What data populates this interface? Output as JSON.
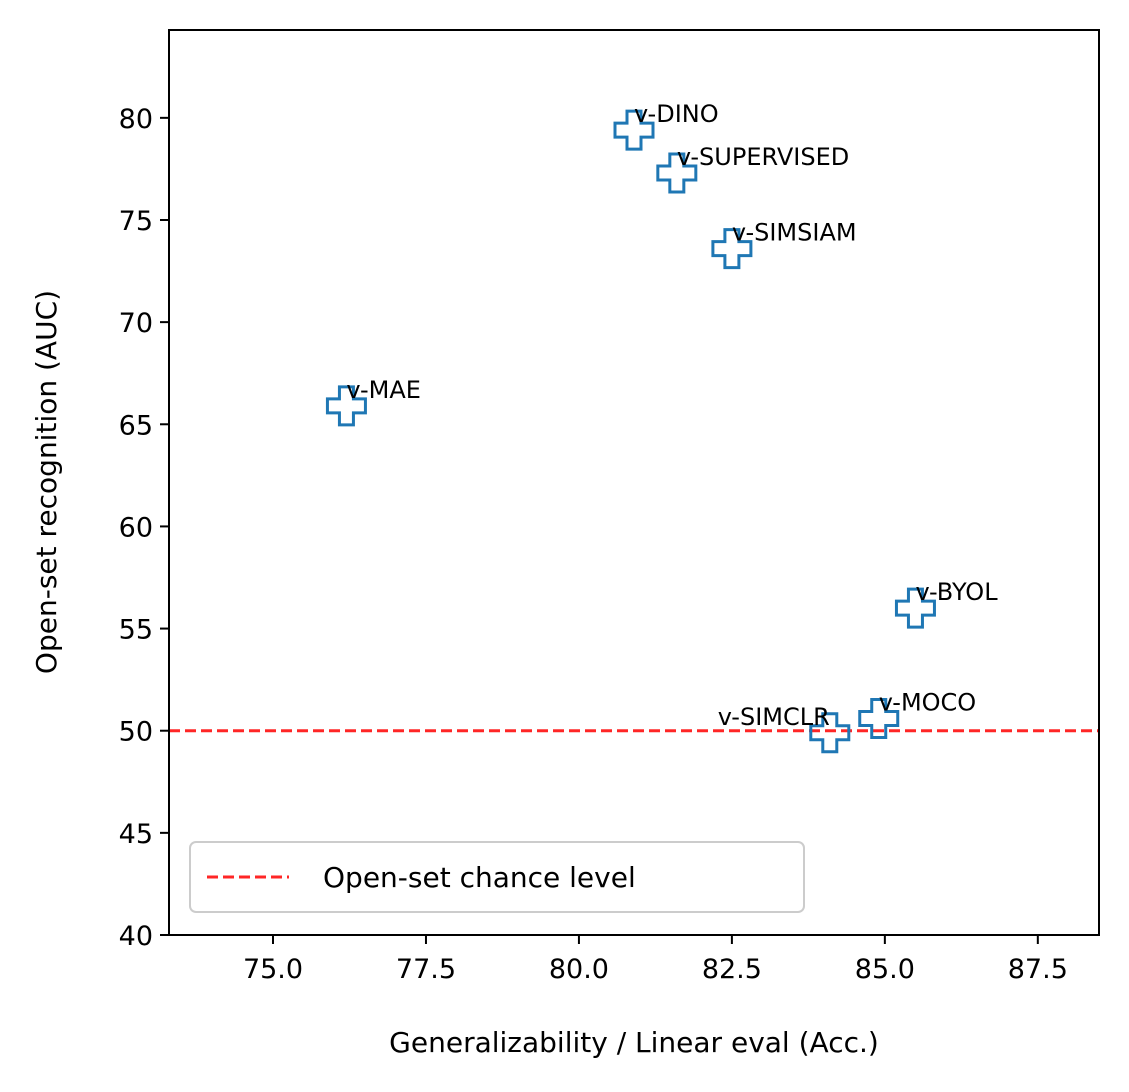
{
  "chart_data": {
    "type": "scatter",
    "xlabel": "Generalizability / Linear eval (Acc.)",
    "ylabel": "Open-set recognition (AUC)",
    "xlim": [
      73.3,
      88.5
    ],
    "ylim": [
      40,
      84.3
    ],
    "x_ticks": [
      "75.0",
      "77.5",
      "80.0",
      "82.5",
      "85.0",
      "87.5"
    ],
    "y_ticks": [
      "40",
      "45",
      "50",
      "55",
      "60",
      "65",
      "70",
      "75",
      "80"
    ],
    "grid": false,
    "marker": "plus-outline",
    "marker_color": "#1f77b4",
    "points": [
      {
        "label": "v-DINO",
        "x": 80.9,
        "y": 79.4,
        "label_side": "right"
      },
      {
        "label": "v-SUPERVISED",
        "x": 81.6,
        "y": 77.3,
        "label_side": "right"
      },
      {
        "label": "v-SIMSIAM",
        "x": 82.5,
        "y": 73.6,
        "label_side": "right"
      },
      {
        "label": "v-MAE",
        "x": 76.2,
        "y": 65.9,
        "label_side": "right"
      },
      {
        "label": "v-BYOL",
        "x": 85.5,
        "y": 56.0,
        "label_side": "right"
      },
      {
        "label": "v-MOCO",
        "x": 84.9,
        "y": 50.6,
        "label_side": "right"
      },
      {
        "label": "v-SIMCLR",
        "x": 84.1,
        "y": 49.9,
        "label_side": "left"
      }
    ],
    "reference_line": {
      "label": "Open-set chance level",
      "y": 50,
      "color": "#ff0000",
      "style": "dashed"
    },
    "legend": {
      "placement": "lower-left",
      "entries": [
        "Open-set chance level"
      ]
    }
  }
}
